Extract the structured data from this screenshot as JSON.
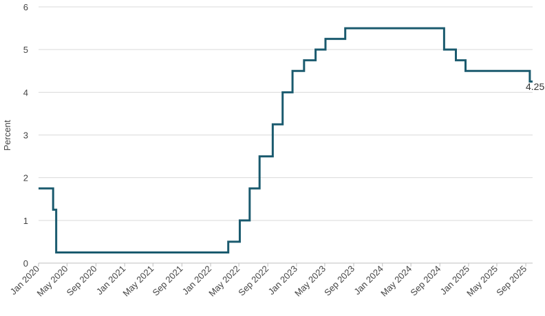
{
  "chart_data": {
    "type": "line",
    "title": "",
    "ylabel": "Percent",
    "xlabel": "",
    "ylim": [
      0,
      6
    ],
    "yticks": [
      "0",
      "1",
      "2",
      "3",
      "4",
      "5",
      "6"
    ],
    "xlim": [
      "2020-01-01",
      "2025-09-30"
    ],
    "xticks": [
      {
        "label": "Jan 2020",
        "date": "2020-01-01"
      },
      {
        "label": "May 2020",
        "date": "2020-05-01"
      },
      {
        "label": "Sep 2020",
        "date": "2020-09-01"
      },
      {
        "label": "Jan 2021",
        "date": "2021-01-01"
      },
      {
        "label": "May 2021",
        "date": "2021-05-01"
      },
      {
        "label": "Sep 2021",
        "date": "2021-09-01"
      },
      {
        "label": "Jan 2022",
        "date": "2022-01-01"
      },
      {
        "label": "May 2022",
        "date": "2022-05-01"
      },
      {
        "label": "Sep 2022",
        "date": "2022-09-01"
      },
      {
        "label": "Jan 2023",
        "date": "2023-01-01"
      },
      {
        "label": "May 2023",
        "date": "2023-05-01"
      },
      {
        "label": "Sep 2023",
        "date": "2023-09-01"
      },
      {
        "label": "Jan 2024",
        "date": "2024-01-01"
      },
      {
        "label": "May 2024",
        "date": "2024-05-01"
      },
      {
        "label": "Sep 2024",
        "date": "2024-09-01"
      },
      {
        "label": "Jan 2025",
        "date": "2025-01-01"
      },
      {
        "label": "May 2025",
        "date": "2025-05-01"
      },
      {
        "label": "Sep 2025",
        "date": "2025-09-01"
      }
    ],
    "grid": true,
    "step": true,
    "series": [
      {
        "color": "#1a5a6e",
        "points": [
          {
            "x": "2020-01-01",
            "y": 1.75
          },
          {
            "x": "2020-03-03",
            "y": 1.25
          },
          {
            "x": "2020-03-16",
            "y": 0.25
          },
          {
            "x": "2022-03-17",
            "y": 0.5
          },
          {
            "x": "2022-05-05",
            "y": 1.0
          },
          {
            "x": "2022-06-16",
            "y": 1.75
          },
          {
            "x": "2022-07-28",
            "y": 2.5
          },
          {
            "x": "2022-09-22",
            "y": 3.25
          },
          {
            "x": "2022-11-03",
            "y": 4.0
          },
          {
            "x": "2022-12-15",
            "y": 4.5
          },
          {
            "x": "2023-02-02",
            "y": 4.75
          },
          {
            "x": "2023-03-23",
            "y": 5.0
          },
          {
            "x": "2023-05-04",
            "y": 5.25
          },
          {
            "x": "2023-07-27",
            "y": 5.5
          },
          {
            "x": "2024-09-19",
            "y": 5.0
          },
          {
            "x": "2024-11-08",
            "y": 4.75
          },
          {
            "x": "2024-12-19",
            "y": 4.5
          },
          {
            "x": "2025-09-18",
            "y": 4.25
          }
        ],
        "end": "2025-09-30"
      }
    ],
    "annotations": [
      {
        "text": "4.25",
        "x": "2025-09-30",
        "y": 4.25
      }
    ]
  }
}
